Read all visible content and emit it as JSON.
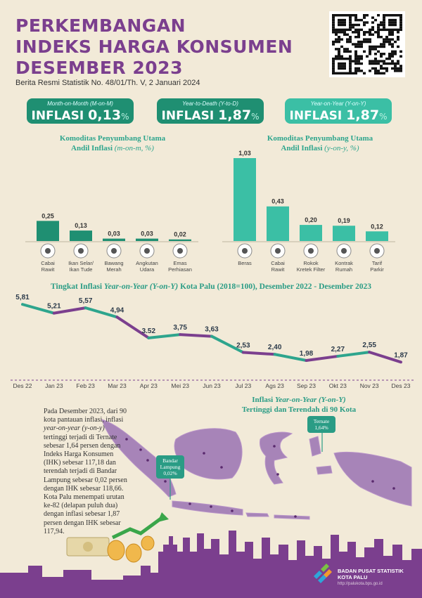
{
  "header": {
    "title_line1": "PERKEMBANGAN",
    "title_line2": "INDEKS HARGA KONSUMEN",
    "title_line3": "DESEMBER 2023",
    "subtitle": "Berita Resmi Statistik No. 48/01/Th. V, 2 Januari 2024"
  },
  "pills": [
    {
      "label": "Month-on-Month (M-on-M)",
      "prefix": "INFLASI",
      "value": "0,13",
      "unit": "%"
    },
    {
      "label": "Year-to-Death (Y-to-D)",
      "prefix": "INFLASI",
      "value": "1,87",
      "unit": "%"
    },
    {
      "label": "Year-on-Year (Y-on-Y)",
      "prefix": "INFLASI",
      "value": "1,87",
      "unit": "%"
    }
  ],
  "colors": {
    "purple": "#7b3f8e",
    "teal": "#2ea58d",
    "bg": "#f2ead8",
    "bar_dark": "#1f8f72",
    "bar_light": "#3bbfa5"
  },
  "chart_data": [
    {
      "type": "bar",
      "title_line1": "Komoditas Penyumbang Utama",
      "title_line2": "Andil Inflasi",
      "title_italic": "(m-on-m, %)",
      "categories": [
        "Cabai Rawit",
        "Ikan Selar/ Ikan Tude",
        "Bawang Merah",
        "Angkutan Udara",
        "Emas Perhiasan"
      ],
      "category_lines": [
        [
          "Cabai",
          "Rawit"
        ],
        [
          "Ikan Selar/",
          "Ikan Tude"
        ],
        [
          "Bawang",
          "Merah"
        ],
        [
          "Angkutan",
          "Udara"
        ],
        [
          "Emas",
          "Perhiasan"
        ]
      ],
      "values": [
        0.25,
        0.13,
        0.03,
        0.03,
        0.02
      ],
      "labels": [
        "0,25",
        "0,13",
        "0,03",
        "0,03",
        "0,02"
      ],
      "icons": [
        "chili-icon",
        "fish-icon",
        "onion-icon",
        "airplane-icon",
        "jewelry-icon"
      ]
    },
    {
      "type": "bar",
      "title_line1": "Komoditas Penyumbang Utama",
      "title_line2": "Andil Inflasi",
      "title_italic": "(y-on-y, %)",
      "categories": [
        "Beras",
        "Cabai Rawit",
        "Rokok Kretek Filter",
        "Kontrak Rumah",
        "Tarif Parkir"
      ],
      "category_lines": [
        [
          "Beras",
          ""
        ],
        [
          "Cabai",
          "Rawit"
        ],
        [
          "Rokok",
          "Kretek Filter"
        ],
        [
          "Kontrak",
          "Rumah"
        ],
        [
          "Tarif",
          "Parkir"
        ]
      ],
      "values": [
        1.03,
        0.43,
        0.2,
        0.19,
        0.12
      ],
      "labels": [
        "1,03",
        "0,43",
        "0,20",
        "0,19",
        "0,12"
      ],
      "icons": [
        "rice-icon",
        "chili-icon",
        "cigarette-icon",
        "house-icon",
        "parking-icon"
      ]
    },
    {
      "type": "line",
      "title": "Tingkat Inflasi",
      "title_italic": "Year-on-Year (Y-on-Y)",
      "title_rest": "Kota Palu (2018=100), Desember 2022 - Desember 2023",
      "categories": [
        "Des 22",
        "Jan 23",
        "Feb 23",
        "Mar 23",
        "Apr 23",
        "Mei 23",
        "Jun 23",
        "Jul 23",
        "Ags 23",
        "Sep 23",
        "Okt 23",
        "Nov 23",
        "Des 23"
      ],
      "values": [
        5.81,
        5.21,
        5.57,
        4.94,
        3.52,
        3.75,
        3.63,
        2.53,
        2.4,
        1.98,
        2.27,
        2.55,
        1.87
      ],
      "labels": [
        "5,81",
        "5,21",
        "5,57",
        "4,94",
        "3.52",
        "3,75",
        "3,63",
        "2,53",
        "2,40",
        "1,98",
        "2,27",
        "2,55",
        "1,87"
      ]
    }
  ],
  "map": {
    "title_line1": "Inflasi",
    "title_italic": "Year-on-Year (Y-on-Y)",
    "title_line2": "Tertinggi dan Terendah di 90 Kota",
    "high_city": "Ternate",
    "high_value": "1,64%",
    "low_city_line1": "Bandar",
    "low_city_line2": "Lampung",
    "low_value": "0,02%"
  },
  "paragraph": {
    "p1": "Pada Desember 2023, dari 90 kota pantauan inflasi, inflasi",
    "p1_italic": "year-on-year (y-on-y)",
    "p2": "tertinggi terjadi di Ternate sebesar 1,64 persen dengan Indeks Harga Konsumen (IHK) sebesar 117,18 dan terendah terjadi di Bandar Lampung sebesar 0,02 persen dengan IHK sebesar 118,66.  Kota Palu menempati urutan ke-82 (delapan puluh dua) dengan  inflasi sebesar 1,87 persen dengan IHK sebesar 117,94."
  },
  "footer": {
    "org_line1": "BADAN PUSAT STATISTIK",
    "org_line2": "KOTA PALU",
    "url": "http://palukota.bps.go.id"
  }
}
